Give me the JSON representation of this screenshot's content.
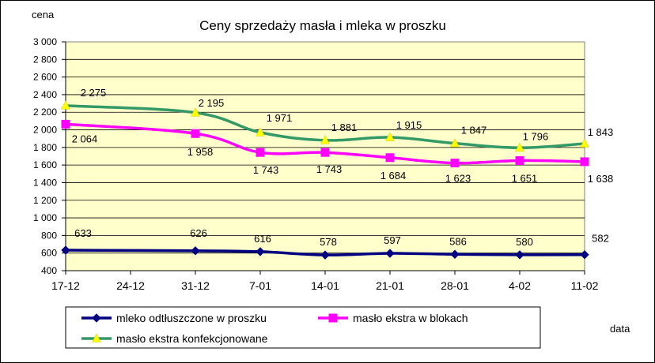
{
  "chart_data": {
    "type": "line",
    "title": "Ceny sprzedaży masła i mleka w proszku",
    "ylabel": "cena",
    "xlabel": "data",
    "x_ticks": [
      "17-12",
      "24-12",
      "31-12",
      "7-01",
      "14-01",
      "21-01",
      "28-01",
      "4-02",
      "11-02"
    ],
    "ylim": [
      400,
      3000
    ],
    "y_step": 200,
    "grid": true,
    "plot_background": "#ffffcc",
    "legend_position": "bottom",
    "series": [
      {
        "name": "mleko odtłuszczone w proszku",
        "color": "#000080",
        "marker": "diamond",
        "x": [
          "17-12",
          "31-12",
          "7-01",
          "14-01",
          "21-01",
          "28-01",
          "4-02",
          "11-02"
        ],
        "values": [
          633,
          626,
          616,
          578,
          597,
          586,
          580,
          582
        ],
        "labels": [
          "633",
          "626",
          "616",
          "578",
          "597",
          "586",
          "580",
          "582"
        ]
      },
      {
        "name": "masło ekstra w blokach",
        "color": "#ff00ff",
        "marker": "square",
        "x": [
          "17-12",
          "31-12",
          "7-01",
          "14-01",
          "21-01",
          "28-01",
          "4-02",
          "11-02"
        ],
        "values": [
          2064,
          1958,
          1743,
          1743,
          1684,
          1623,
          1651,
          1638
        ],
        "labels": [
          "2 064",
          "1 958",
          "1 743",
          "1 743",
          "1 684",
          "1 623",
          "1 651",
          "1 638"
        ]
      },
      {
        "name": "masło ekstra konfekcjonowane",
        "color": "#339966",
        "marker": "triangle",
        "marker_color": "#ffff00",
        "x": [
          "17-12",
          "31-12",
          "7-01",
          "14-01",
          "21-01",
          "28-01",
          "4-02",
          "11-02"
        ],
        "values": [
          2275,
          2195,
          1971,
          1881,
          1915,
          1847,
          1796,
          1843
        ],
        "labels": [
          "2 275",
          "2 195",
          "1 971",
          "1 881",
          "1 915",
          "1 847",
          "1 796",
          "1 843"
        ]
      }
    ]
  }
}
